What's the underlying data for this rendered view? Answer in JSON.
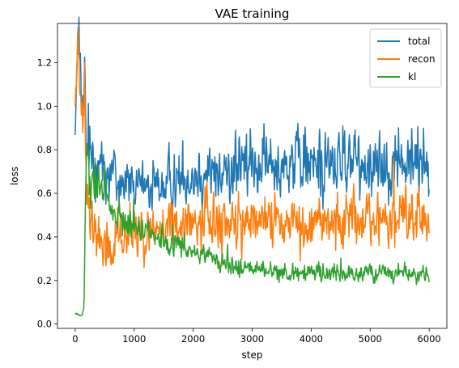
{
  "chart_data": {
    "type": "line",
    "title": "VAE training",
    "xlabel": "step",
    "ylabel": "loss",
    "xlim": [
      -300,
      6300
    ],
    "ylim": [
      -0.02,
      1.38
    ],
    "xticks": [
      0,
      1000,
      2000,
      3000,
      4000,
      5000,
      6000
    ],
    "xtick_labels": [
      "0",
      "1000",
      "2000",
      "3000",
      "4000",
      "5000",
      "6000"
    ],
    "yticks": [
      0.0,
      0.2,
      0.4,
      0.6,
      0.8,
      1.0,
      1.2
    ],
    "ytick_labels": [
      "0.0",
      "0.2",
      "0.4",
      "0.6",
      "0.8",
      "1.0",
      "1.2"
    ],
    "grid": false,
    "legend_position": "top-right",
    "series": [
      {
        "name": "total",
        "color": "#1f77b4",
        "points": [
          [
            0,
            1.0
          ],
          [
            60,
            1.25
          ],
          [
            120,
            0.95
          ],
          [
            160,
            1.1
          ],
          [
            200,
            0.75
          ],
          [
            300,
            0.8
          ],
          [
            500,
            0.72
          ],
          [
            800,
            0.66
          ],
          [
            1000,
            0.62
          ],
          [
            1500,
            0.64
          ],
          [
            2000,
            0.68
          ],
          [
            2500,
            0.7
          ],
          [
            3000,
            0.73
          ],
          [
            3500,
            0.74
          ],
          [
            4000,
            0.74
          ],
          [
            4500,
            0.74
          ],
          [
            5000,
            0.74
          ],
          [
            5500,
            0.74
          ],
          [
            6000,
            0.74
          ]
        ],
        "noise": [
          [
            0,
            0.15
          ],
          [
            300,
            0.14
          ],
          [
            1000,
            0.1
          ],
          [
            2000,
            0.11
          ],
          [
            3000,
            0.13
          ],
          [
            4000,
            0.14
          ],
          [
            5000,
            0.14
          ],
          [
            6000,
            0.14
          ]
        ]
      },
      {
        "name": "recon",
        "color": "#ff7f0e",
        "points": [
          [
            0,
            1.05
          ],
          [
            60,
            1.28
          ],
          [
            120,
            1.0
          ],
          [
            160,
            1.15
          ],
          [
            180,
            0.7
          ],
          [
            250,
            0.45
          ],
          [
            400,
            0.38
          ],
          [
            600,
            0.34
          ],
          [
            800,
            0.36
          ],
          [
            1000,
            0.4
          ],
          [
            1500,
            0.44
          ],
          [
            2000,
            0.47
          ],
          [
            2500,
            0.47
          ],
          [
            3000,
            0.47
          ],
          [
            4000,
            0.48
          ],
          [
            5000,
            0.48
          ],
          [
            6000,
            0.48
          ]
        ],
        "noise": [
          [
            0,
            0.15
          ],
          [
            200,
            0.12
          ],
          [
            1000,
            0.1
          ],
          [
            2000,
            0.1
          ],
          [
            3000,
            0.11
          ],
          [
            4000,
            0.11
          ],
          [
            5000,
            0.11
          ],
          [
            6000,
            0.11
          ]
        ]
      },
      {
        "name": "kl",
        "color": "#2ca02c",
        "points": [
          [
            0,
            0.05
          ],
          [
            60,
            0.04
          ],
          [
            120,
            0.04
          ],
          [
            150,
            0.08
          ],
          [
            170,
            0.45
          ],
          [
            190,
            0.8
          ],
          [
            250,
            0.62
          ],
          [
            400,
            0.62
          ],
          [
            500,
            0.66
          ],
          [
            600,
            0.55
          ],
          [
            800,
            0.48
          ],
          [
            1000,
            0.45
          ],
          [
            1500,
            0.38
          ],
          [
            2000,
            0.33
          ],
          [
            2500,
            0.28
          ],
          [
            3000,
            0.25
          ],
          [
            3500,
            0.24
          ],
          [
            4000,
            0.23
          ],
          [
            4500,
            0.23
          ],
          [
            5000,
            0.23
          ],
          [
            6000,
            0.23
          ]
        ],
        "noise": [
          [
            0,
            0.004
          ],
          [
            150,
            0.004
          ],
          [
            200,
            0.1
          ],
          [
            600,
            0.08
          ],
          [
            1000,
            0.06
          ],
          [
            2000,
            0.04
          ],
          [
            3000,
            0.035
          ],
          [
            6000,
            0.035
          ]
        ]
      }
    ]
  }
}
